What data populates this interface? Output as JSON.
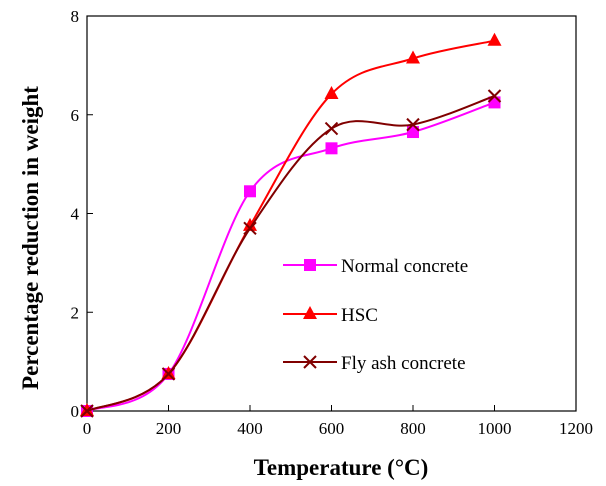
{
  "chart_data": {
    "type": "line",
    "title": "",
    "xlabel": "Temperature (°C)",
    "ylabel": "Percentage reduction in weight",
    "xlim": [
      0,
      1200
    ],
    "ylim": [
      0,
      8
    ],
    "x_ticks": [
      0,
      200,
      400,
      600,
      800,
      1000,
      1200
    ],
    "y_ticks": [
      0,
      2,
      4,
      6,
      8
    ],
    "grid": false,
    "legend_position": "right-center",
    "series": [
      {
        "name": "Normal concrete",
        "color": "#ff00ff",
        "marker": "square",
        "points": [
          [
            0,
            0
          ],
          [
            200,
            0.75
          ],
          [
            400,
            4.45
          ],
          [
            600,
            5.32
          ],
          [
            800,
            5.65
          ],
          [
            1000,
            6.25
          ]
        ]
      },
      {
        "name": "HSC",
        "color": "#ff0000",
        "marker": "triangle",
        "points": [
          [
            0,
            0
          ],
          [
            200,
            0.75
          ],
          [
            400,
            3.75
          ],
          [
            600,
            6.42
          ],
          [
            800,
            7.14
          ],
          [
            1000,
            7.5
          ]
        ]
      },
      {
        "name": "Fly ash concrete",
        "color": "#800000",
        "marker": "x",
        "points": [
          [
            0,
            0
          ],
          [
            200,
            0.75
          ],
          [
            400,
            3.7
          ],
          [
            600,
            5.72
          ],
          [
            800,
            5.8
          ],
          [
            1000,
            6.38
          ]
        ]
      }
    ]
  }
}
